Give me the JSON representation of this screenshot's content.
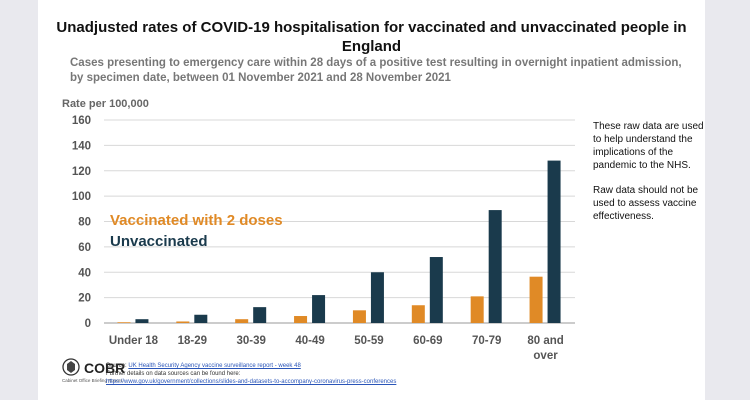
{
  "title": "Unadjusted rates of COVID-19 hospitalisation for vaccinated and unvaccinated people in England",
  "subtitle": "Cases presenting to emergency care within 28 days of a positive test resulting in overnight inpatient admission, by specimen date, between 01 November 2021 and 28 November 2021",
  "side_note": {
    "p1": "These raw data are used to help understand the implications of the pandemic to the NHS.",
    "p2": "Raw data should not be used to assess vaccine effectiveness."
  },
  "logo": {
    "name": "COBR",
    "sub": "Cabinet Office Briefing Rooms"
  },
  "sources": {
    "line1_prefix": "Source:",
    "line1_link": "UK Health Security Agency vaccine surveillance report - week 48",
    "line2": "Further details on data sources can be found here:",
    "line3_link": "https://www.gov.uk/government/collections/slides-and-datasets-to-accompany-coronavirus-press-conferences"
  },
  "colors": {
    "vaccinated": "#e08a26",
    "unvaccinated": "#1a3a4c"
  },
  "chart_data": {
    "type": "bar",
    "ylabel": "Rate per 100,000",
    "ylim": [
      0,
      160
    ],
    "yticks": [
      0,
      20,
      40,
      60,
      80,
      100,
      120,
      140,
      160
    ],
    "categories": [
      "Under 18",
      "18-29",
      "30-39",
      "40-49",
      "50-59",
      "60-69",
      "70-79",
      "80 and over"
    ],
    "series": [
      {
        "name": "Vaccinated with 2 doses",
        "values": [
          0.6,
          1.2,
          3,
          5.5,
          10,
          14,
          21,
          36.5
        ]
      },
      {
        "name": "Unvaccinated",
        "values": [
          3,
          6.5,
          12.5,
          22,
          40,
          52,
          89,
          128
        ]
      }
    ],
    "legend": "inside-left"
  }
}
